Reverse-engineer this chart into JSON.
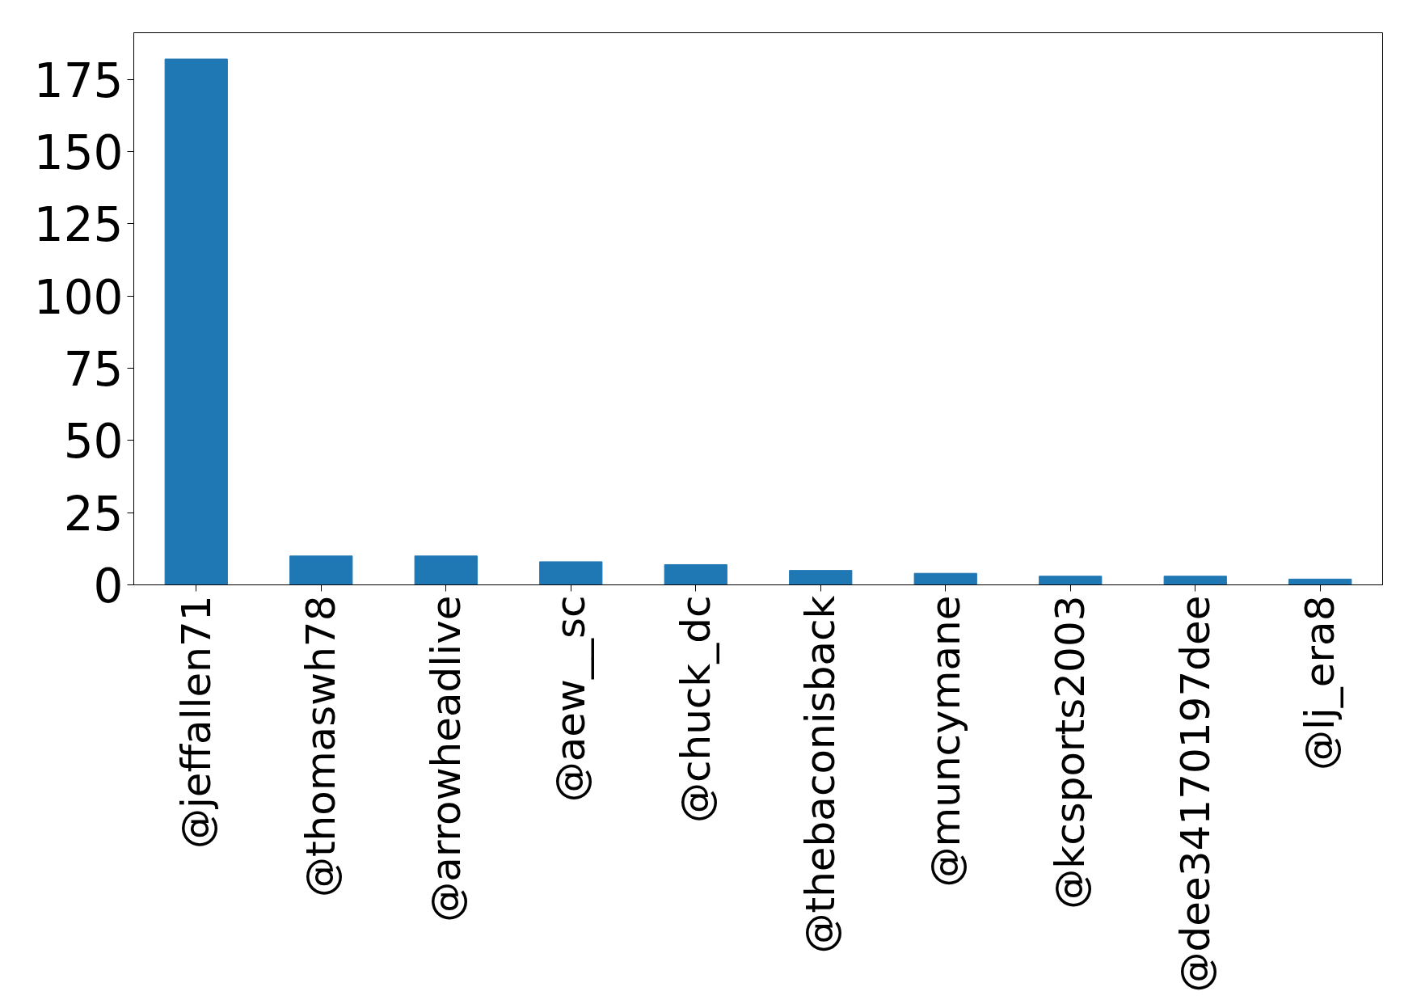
{
  "chart_data": {
    "type": "bar",
    "categories": [
      "@jeffallen71",
      "@thomaswh78",
      "@arrowheadlive",
      "@aew__sc",
      "@chuck_dc",
      "@thebaconisback",
      "@muncymane",
      "@kcsports2003",
      "@dee34170197dee",
      "@lj_era8"
    ],
    "values": [
      182,
      10,
      10,
      8,
      7,
      5,
      4,
      3,
      3,
      2
    ],
    "color": "#1f77b4",
    "ylim": [
      0,
      191.1
    ],
    "yticks": [
      0,
      25,
      50,
      75,
      100,
      125,
      150,
      175
    ],
    "grid": false
  }
}
